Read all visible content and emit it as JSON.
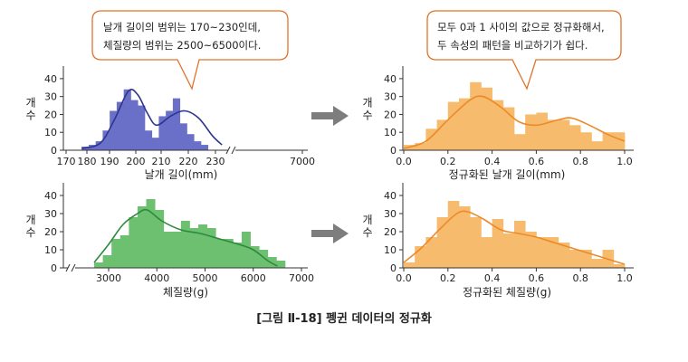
{
  "figure_caption": "[그림 Ⅱ-18] 펭귄 데이터의 정규화",
  "callouts": {
    "left": [
      "날개 길이의 범위는 170~230인데,",
      "체질량의 범위는 2500~6500이다."
    ],
    "right": [
      "모두 0과 1 사이의 값으로 정규화해서,",
      "두 속성의 패턴을 비교하기가 쉽다."
    ]
  },
  "colors": {
    "flipper_bars": "#6a6fc8",
    "flipper_line": "#2e3590",
    "mass_bars": "#6cc070",
    "mass_line": "#2e8a3c",
    "norm_bars": "#f7bb6e",
    "norm_line": "#ec8a2a",
    "arrow": "#7d7d7d",
    "callout_border": "#e0732c"
  },
  "chart_data": [
    {
      "id": "flipper_raw",
      "type": "bar",
      "ylabel": "개\n수",
      "xlabel": "날개 길이(mm)",
      "y_ticks": [
        0,
        10,
        20,
        30,
        40
      ],
      "ylim": [
        0,
        45
      ],
      "x_ticks": [
        "170",
        "180",
        "190",
        "200",
        "210",
        "220",
        "230",
        "7000"
      ],
      "axis_break": "after-230",
      "bin_start": 172,
      "bin_width": 3,
      "values": [
        2,
        3,
        5,
        11,
        22,
        27,
        34,
        28,
        25,
        11,
        7,
        19,
        22,
        29,
        15,
        9,
        5,
        3
      ],
      "kde": [
        [
          172,
          1
        ],
        [
          180,
          4
        ],
        [
          186,
          17
        ],
        [
          192,
          33
        ],
        [
          196,
          31
        ],
        [
          200,
          21
        ],
        [
          204,
          14
        ],
        [
          210,
          19
        ],
        [
          216,
          22
        ],
        [
          222,
          18
        ],
        [
          228,
          8
        ],
        [
          232,
          3
        ]
      ]
    },
    {
      "id": "flipper_norm",
      "type": "bar",
      "ylabel": "개\n수",
      "xlabel": "정규화된 날개 길이(mm)",
      "y_ticks": [
        0,
        10,
        20,
        30,
        40
      ],
      "ylim": [
        0,
        45
      ],
      "x_ticks": [
        "0.0",
        "0.2",
        "0.4",
        "0.6",
        "0.8",
        "1.0"
      ],
      "bin_start": 0,
      "bin_width": 0.05,
      "values": [
        3,
        4,
        12,
        17,
        27,
        29,
        38,
        35,
        28,
        24,
        9,
        20,
        21,
        17,
        17,
        14,
        10,
        5,
        10,
        10
      ],
      "kde": [
        [
          0.0,
          1
        ],
        [
          0.1,
          5
        ],
        [
          0.2,
          17
        ],
        [
          0.3,
          28
        ],
        [
          0.36,
          30
        ],
        [
          0.44,
          24
        ],
        [
          0.52,
          16
        ],
        [
          0.6,
          14
        ],
        [
          0.7,
          17
        ],
        [
          0.76,
          18
        ],
        [
          0.84,
          14
        ],
        [
          0.92,
          9
        ],
        [
          1.0,
          5
        ]
      ]
    },
    {
      "id": "mass_raw",
      "type": "bar",
      "ylabel": "개\n수",
      "xlabel": "체질량(g)",
      "y_ticks": [
        0,
        10,
        20,
        30,
        40
      ],
      "ylim": [
        0,
        45
      ],
      "x_ticks": [
        "3000",
        "4000",
        "5000",
        "6000",
        "7000"
      ],
      "axis_break": "before-3000",
      "bin_start": 2700,
      "bin_width": 180,
      "values": [
        3,
        7,
        16,
        18,
        28,
        34,
        38,
        32,
        20,
        20,
        26,
        22,
        24,
        22,
        16,
        16,
        14,
        20,
        12,
        10,
        6,
        4
      ],
      "kde": [
        [
          2700,
          3
        ],
        [
          3000,
          13
        ],
        [
          3300,
          24
        ],
        [
          3600,
          30
        ],
        [
          3800,
          32
        ],
        [
          4100,
          26
        ],
        [
          4500,
          21
        ],
        [
          4900,
          19
        ],
        [
          5300,
          16
        ],
        [
          5700,
          13
        ],
        [
          6000,
          10
        ],
        [
          6300,
          4
        ],
        [
          6500,
          1
        ]
      ]
    },
    {
      "id": "mass_norm",
      "type": "bar",
      "ylabel": "개\n수",
      "xlabel": "정규화된 체질량(g)",
      "y_ticks": [
        0,
        10,
        20,
        30,
        40
      ],
      "ylim": [
        0,
        45
      ],
      "x_ticks": [
        "0.0",
        "0.2",
        "0.4",
        "0.6",
        "0.8",
        "1.0"
      ],
      "bin_start": 0,
      "bin_width": 0.05,
      "values": [
        3,
        12,
        17,
        28,
        37,
        34,
        28,
        17,
        27,
        19,
        26,
        20,
        17,
        17,
        14,
        10,
        10,
        5,
        10,
        2
      ],
      "kde": [
        [
          0.0,
          3
        ],
        [
          0.08,
          11
        ],
        [
          0.16,
          21
        ],
        [
          0.24,
          30
        ],
        [
          0.29,
          31
        ],
        [
          0.36,
          27
        ],
        [
          0.44,
          21
        ],
        [
          0.52,
          19
        ],
        [
          0.6,
          17
        ],
        [
          0.68,
          14
        ],
        [
          0.76,
          11
        ],
        [
          0.84,
          8
        ],
        [
          0.92,
          5
        ],
        [
          1.0,
          2
        ]
      ]
    }
  ]
}
